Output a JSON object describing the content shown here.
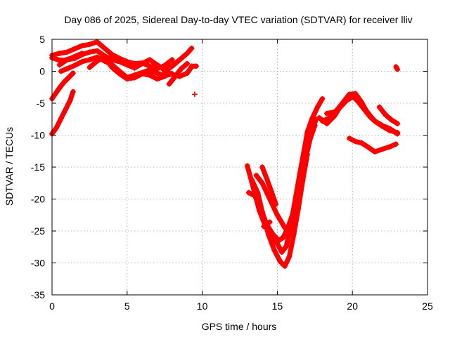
{
  "chart_data": {
    "type": "scatter",
    "title": "Day 086 of 2025, Sidereal Day-to-day VTEC variation (SDTVAR) for receiver lliv",
    "xlabel": "GPS time / hours",
    "ylabel": "SDTVAR / TECUs",
    "xlim": [
      0,
      25
    ],
    "ylim": [
      -35,
      5
    ],
    "xticks": [
      "0",
      "5",
      "10",
      "15",
      "20",
      "25"
    ],
    "yticks": [
      "5",
      "0",
      "-5",
      "-10",
      "-15",
      "-20",
      "-25",
      "-30",
      "-35"
    ],
    "grid": true,
    "marker": "+",
    "series_color": "#ff0000",
    "series": [
      {
        "x": [
          0.0,
          0.5,
          1.0,
          1.5,
          2.0,
          2.5,
          3.0,
          3.3,
          3.6,
          4.0,
          4.5,
          5.0,
          5.5,
          6.0,
          6.5,
          7.0,
          7.5,
          8.0
        ],
        "y": [
          2.5,
          2.8,
          3.0,
          3.5,
          4.0,
          4.2,
          4.6,
          4.0,
          3.4,
          2.6,
          2.0,
          1.5,
          1.2,
          1.3,
          0.8,
          0.4,
          0.9,
          1.8
        ]
      },
      {
        "x": [
          0.5,
          1.0,
          1.5,
          2.0,
          2.5,
          3.0,
          3.5,
          4.0,
          4.5,
          5.0,
          5.5,
          6.0,
          6.5,
          7.0,
          7.5,
          8.0,
          8.5,
          9.0,
          9.3
        ],
        "y": [
          1.0,
          1.8,
          2.0,
          2.6,
          3.0,
          3.2,
          2.4,
          1.8,
          1.5,
          1.0,
          0.5,
          1.2,
          1.8,
          1.0,
          0.2,
          -0.5,
          -0.8,
          -0.3,
          0.7
        ]
      },
      {
        "x": [
          0.6,
          1.0,
          1.5,
          2.0,
          2.5,
          3.0,
          3.5,
          4.0,
          4.5,
          5.0,
          5.5,
          6.0,
          6.5,
          7.0,
          7.5,
          8.0
        ],
        "y": [
          0.0,
          0.4,
          0.9,
          1.5,
          1.8,
          2.2,
          1.6,
          1.0,
          0.0,
          -1.0,
          -0.6,
          -0.2,
          0.2,
          -0.3,
          -0.7,
          -0.4
        ]
      },
      {
        "x": [
          2.5,
          3.0,
          3.5,
          4.0,
          4.5,
          5.0,
          5.5,
          6.0,
          6.5,
          7.0,
          7.5,
          7.8
        ],
        "y": [
          0.6,
          1.6,
          2.2,
          0.6,
          -0.4,
          -1.2,
          -1.0,
          -0.4,
          -0.6,
          -1.2,
          -0.8,
          -0.3
        ]
      },
      {
        "x": [
          7.5,
          8.0,
          8.5,
          9.0,
          9.3
        ],
        "y": [
          0.0,
          0.8,
          1.8,
          2.8,
          3.6
        ]
      },
      {
        "x": [
          7.8,
          8.2,
          8.6,
          9.0
        ],
        "y": [
          -2.0,
          -0.8,
          0.4,
          1.2
        ]
      },
      {
        "x": [
          0.0,
          0.4,
          0.8,
          1.2,
          1.6,
          2.0
        ],
        "y": [
          2.1,
          1.8,
          1.7,
          2.0,
          2.4,
          2.8
        ]
      },
      {
        "x": [
          9.3,
          9.6
        ],
        "y": [
          0.8,
          0.8
        ]
      },
      {
        "x": [
          0.0,
          0.2,
          0.5,
          0.8,
          1.1,
          1.4
        ],
        "y": [
          -4.3,
          -3.6,
          -2.6,
          -1.7,
          -1.0,
          -0.3
        ]
      },
      {
        "x": [
          0.0,
          0.3,
          0.6,
          0.9,
          1.2,
          1.4
        ],
        "y": [
          -9.8,
          -8.8,
          -7.4,
          -6.0,
          -4.6,
          -3.2
        ]
      },
      {
        "x": [
          9.5
        ],
        "y": [
          -3.6
        ]
      },
      {
        "x": [
          13.0,
          13.4,
          13.8,
          14.2,
          14.6,
          15.0,
          15.3,
          15.6,
          15.9,
          16.2,
          16.5,
          16.8,
          17.0,
          17.3,
          17.7,
          18.0
        ],
        "y": [
          -14.8,
          -18.2,
          -21.8,
          -24.2,
          -25.6,
          -27.0,
          -28.3,
          -27.4,
          -24.0,
          -20.0,
          -16.0,
          -12.2,
          -9.5,
          -7.5,
          -5.5,
          -4.3
        ]
      },
      {
        "x": [
          13.1,
          13.5,
          13.9,
          14.3,
          14.7,
          15.1,
          15.4,
          15.7,
          16.0,
          16.3,
          16.6,
          16.9,
          17.2,
          17.5
        ],
        "y": [
          -19.0,
          -19.5,
          -21.5,
          -24.0,
          -25.5,
          -26.5,
          -26.0,
          -24.5,
          -22.5,
          -19.5,
          -16.5,
          -13.5,
          -10.5,
          -8.5
        ]
      },
      {
        "x": [
          13.3,
          13.7,
          14.0,
          14.4,
          14.8,
          15.2,
          15.5,
          15.8,
          16.1,
          16.4,
          16.7,
          17.0
        ],
        "y": [
          -17.0,
          -19.0,
          -22.0,
          -25.5,
          -28.0,
          -29.8,
          -30.5,
          -29.0,
          -25.5,
          -21.5,
          -17.0,
          -13.0
        ]
      },
      {
        "x": [
          13.6,
          14.0,
          14.5,
          15.0,
          15.5,
          15.8,
          16.0,
          16.3,
          16.6,
          16.9,
          17.2,
          17.6
        ],
        "y": [
          -16.3,
          -17.5,
          -20.0,
          -22.5,
          -24.5,
          -25.2,
          -23.0,
          -19.5,
          -16.0,
          -12.5,
          -9.5,
          -7.5
        ]
      },
      {
        "x": [
          14.0,
          14.3,
          14.6,
          14.9
        ],
        "y": [
          -15.0,
          -16.8,
          -18.8,
          -20.8
        ]
      },
      {
        "x": [
          14.1,
          14.5
        ],
        "y": [
          -24.3,
          -23.6
        ]
      },
      {
        "x": [
          17.8,
          18.3,
          18.8,
          19.2,
          19.6,
          20.0,
          20.4,
          20.8,
          21.2,
          21.6,
          22.0,
          22.5,
          23.0
        ],
        "y": [
          -7.3,
          -8.2,
          -7.0,
          -5.5,
          -4.2,
          -3.8,
          -4.8,
          -6.0,
          -7.2,
          -8.0,
          -8.6,
          -9.3,
          -9.6
        ]
      },
      {
        "x": [
          18.0,
          18.5,
          19.0,
          19.4,
          19.8,
          20.2,
          20.6,
          21.0,
          21.5,
          22.0,
          22.5,
          23.0
        ],
        "y": [
          -7.8,
          -7.3,
          -6.0,
          -4.8,
          -3.6,
          -3.5,
          -4.8,
          -6.5,
          -7.8,
          -8.5,
          -9.0,
          -9.8
        ]
      },
      {
        "x": [
          18.3,
          18.8,
          19.2,
          19.6,
          20.0,
          20.4,
          20.8,
          21.2
        ],
        "y": [
          -6.6,
          -6.4,
          -5.6,
          -4.6,
          -4.0,
          -4.5,
          -5.8,
          -7.0
        ]
      },
      {
        "x": [
          19.8,
          20.2,
          20.6,
          21.0,
          21.5,
          22.0,
          22.5,
          22.9
        ],
        "y": [
          -10.5,
          -11.0,
          -11.2,
          -11.8,
          -12.6,
          -12.2,
          -11.8,
          -11.4
        ]
      },
      {
        "x": [
          21.8,
          22.2,
          22.6,
          23.0
        ],
        "y": [
          -5.6,
          -6.8,
          -7.6,
          -8.2
        ]
      },
      {
        "x": [
          22.9,
          23.0
        ],
        "y": [
          0.7,
          0.3
        ]
      }
    ]
  }
}
